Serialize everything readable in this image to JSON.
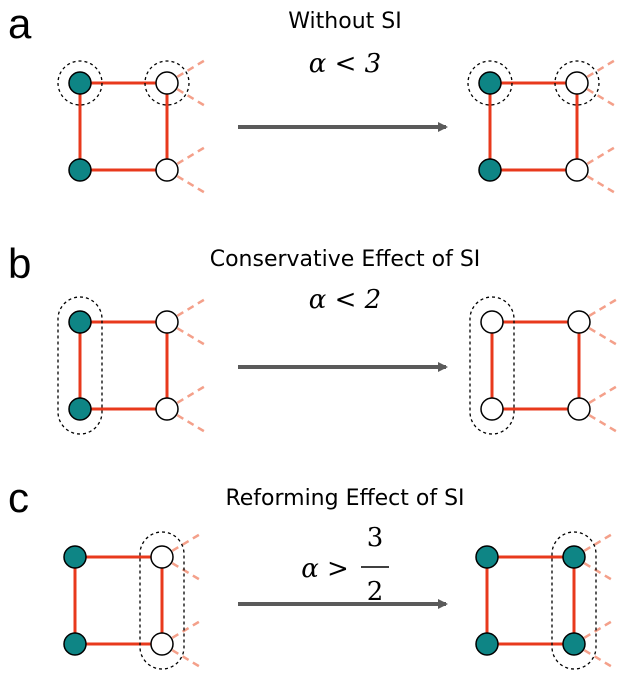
{
  "panels": [
    {
      "letter": "a",
      "title": "Without SI",
      "condition": {
        "relation": "α < 3"
      }
    },
    {
      "letter": "b",
      "title": "Conservative Effect of SI",
      "condition": {
        "relation": "α < 2"
      }
    },
    {
      "letter": "c",
      "title": "Reforming Effect of SI",
      "condition": {
        "relation": "α >",
        "numerator": "3",
        "denominator": "2"
      }
    }
  ]
}
